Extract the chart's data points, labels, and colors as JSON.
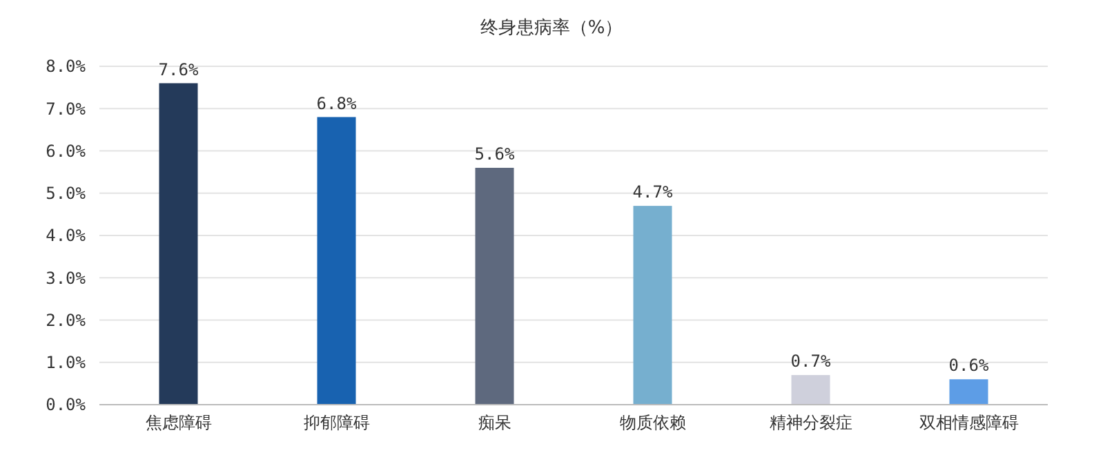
{
  "chart_data": {
    "type": "bar",
    "title": "终身患病率（%）",
    "categories": [
      "焦虑障碍",
      "抑郁障碍",
      "痴呆",
      "物质依赖",
      "精神分裂症",
      "双相情感障碍"
    ],
    "values": [
      7.6,
      6.8,
      5.6,
      4.7,
      0.7,
      0.6
    ],
    "colors": [
      "#243a5a",
      "#1862b0",
      "#5e697e",
      "#76afcf",
      "#cfd0dc",
      "#5d9de6"
    ],
    "value_labels": [
      "7.6%",
      "6.8%",
      "5.6%",
      "4.7%",
      "0.7%",
      "0.6%"
    ],
    "ylim": [
      0,
      8
    ],
    "yticks": [
      {
        "value": 0,
        "label": "0.0%"
      },
      {
        "value": 1,
        "label": "1.0%"
      },
      {
        "value": 2,
        "label": "2.0%"
      },
      {
        "value": 3,
        "label": "3.0%"
      },
      {
        "value": 4,
        "label": "4.0%"
      },
      {
        "value": 5,
        "label": "5.0%"
      },
      {
        "value": 6,
        "label": "6.0%"
      },
      {
        "value": 7,
        "label": "7.0%"
      },
      {
        "value": 8,
        "label": "8.0%"
      }
    ],
    "grid": "y"
  }
}
